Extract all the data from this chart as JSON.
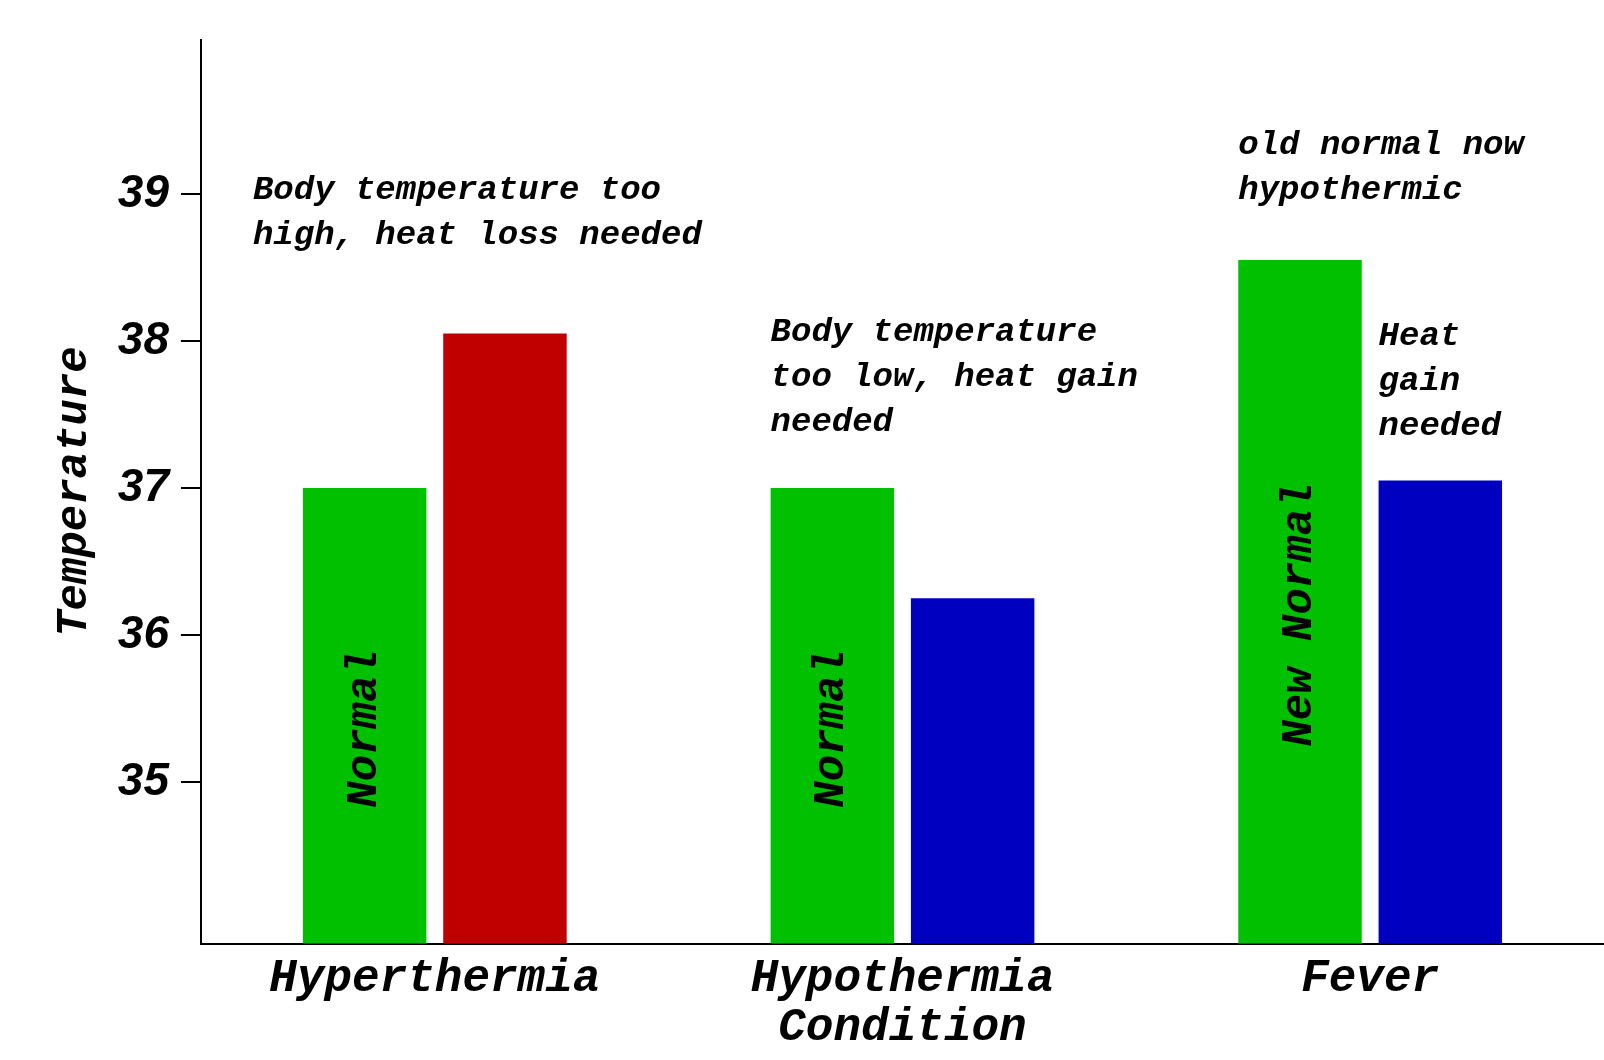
{
  "chart_data": {
    "type": "bar",
    "xlabel": "Condition",
    "ylabel": "Temperature",
    "categories": [
      "Hyperthermia",
      "Hypothermia",
      "Fever"
    ],
    "series": [
      {
        "colors": [
          "#00c000",
          "#00c000",
          "#00c000"
        ],
        "values": [
          37.0,
          37.0,
          38.55
        ]
      },
      {
        "colors": [
          "#c00000",
          "#0000c0",
          "#0000c0"
        ],
        "values": [
          38.05,
          36.25,
          37.05
        ]
      }
    ],
    "ylim": [
      33.9,
      40.05
    ],
    "yticks": [
      35,
      36,
      37,
      38,
      39
    ],
    "grid": false,
    "legend": false,
    "annotations": [
      "Body temperature too high, heat loss needed",
      "Body temperature too low, heat gain needed",
      "old normal now hypothermic",
      "Heat gain needed",
      "Normal",
      "Normal",
      "New Normal"
    ]
  }
}
